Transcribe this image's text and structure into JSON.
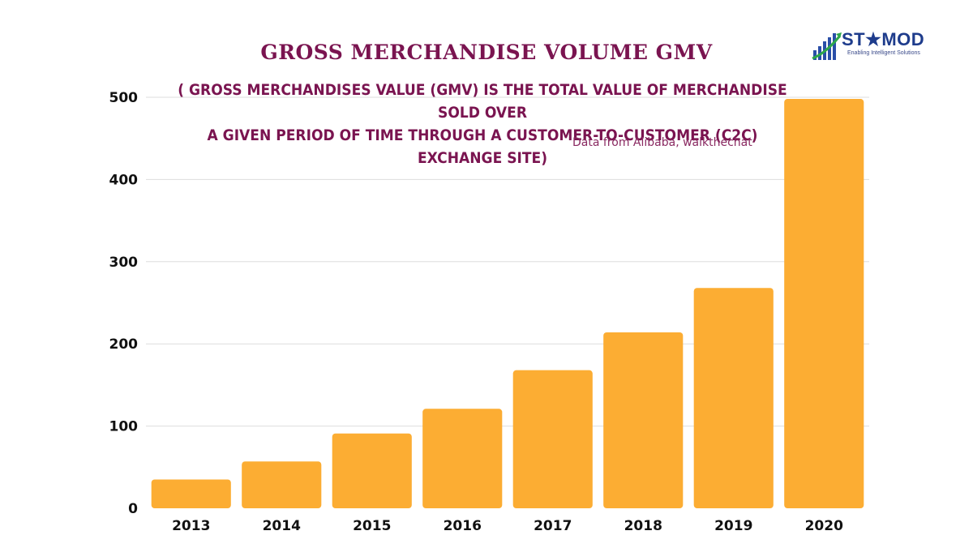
{
  "header": {
    "title": "GROSS MERCHANDISE VOLUME GMV",
    "subtitle_line1": "( GROSS MERCHANDISES VALUE (GMV) IS THE TOTAL VALUE OF MERCHANDISE SOLD OVER",
    "subtitle_line2": "A GIVEN PERIOD OF TIME THROUGH A CUSTOMER-TO-CUSTOMER (C2C) EXCHANGE SITE)",
    "source": "Data from Alibaba, walkthechat"
  },
  "logo": {
    "name": "ST★MOD",
    "tagline": "Enabling Intelligent Solutions"
  },
  "colors": {
    "bar": "#fcad33",
    "title": "#7a1450",
    "grid": "#dddddd"
  },
  "chart_data": {
    "type": "bar",
    "title": "GROSS MERCHANDISE VOLUME GMV",
    "xlabel": "",
    "ylabel": "",
    "categories": [
      "2013",
      "2014",
      "2015",
      "2016",
      "2017",
      "2018",
      "2019",
      "2020"
    ],
    "values": [
      35,
      57,
      91,
      121,
      168,
      214,
      268,
      498
    ],
    "ylim": [
      0,
      500
    ],
    "yticks": [
      0,
      100,
      200,
      300,
      400,
      500
    ],
    "grid": true,
    "legend": "none"
  }
}
